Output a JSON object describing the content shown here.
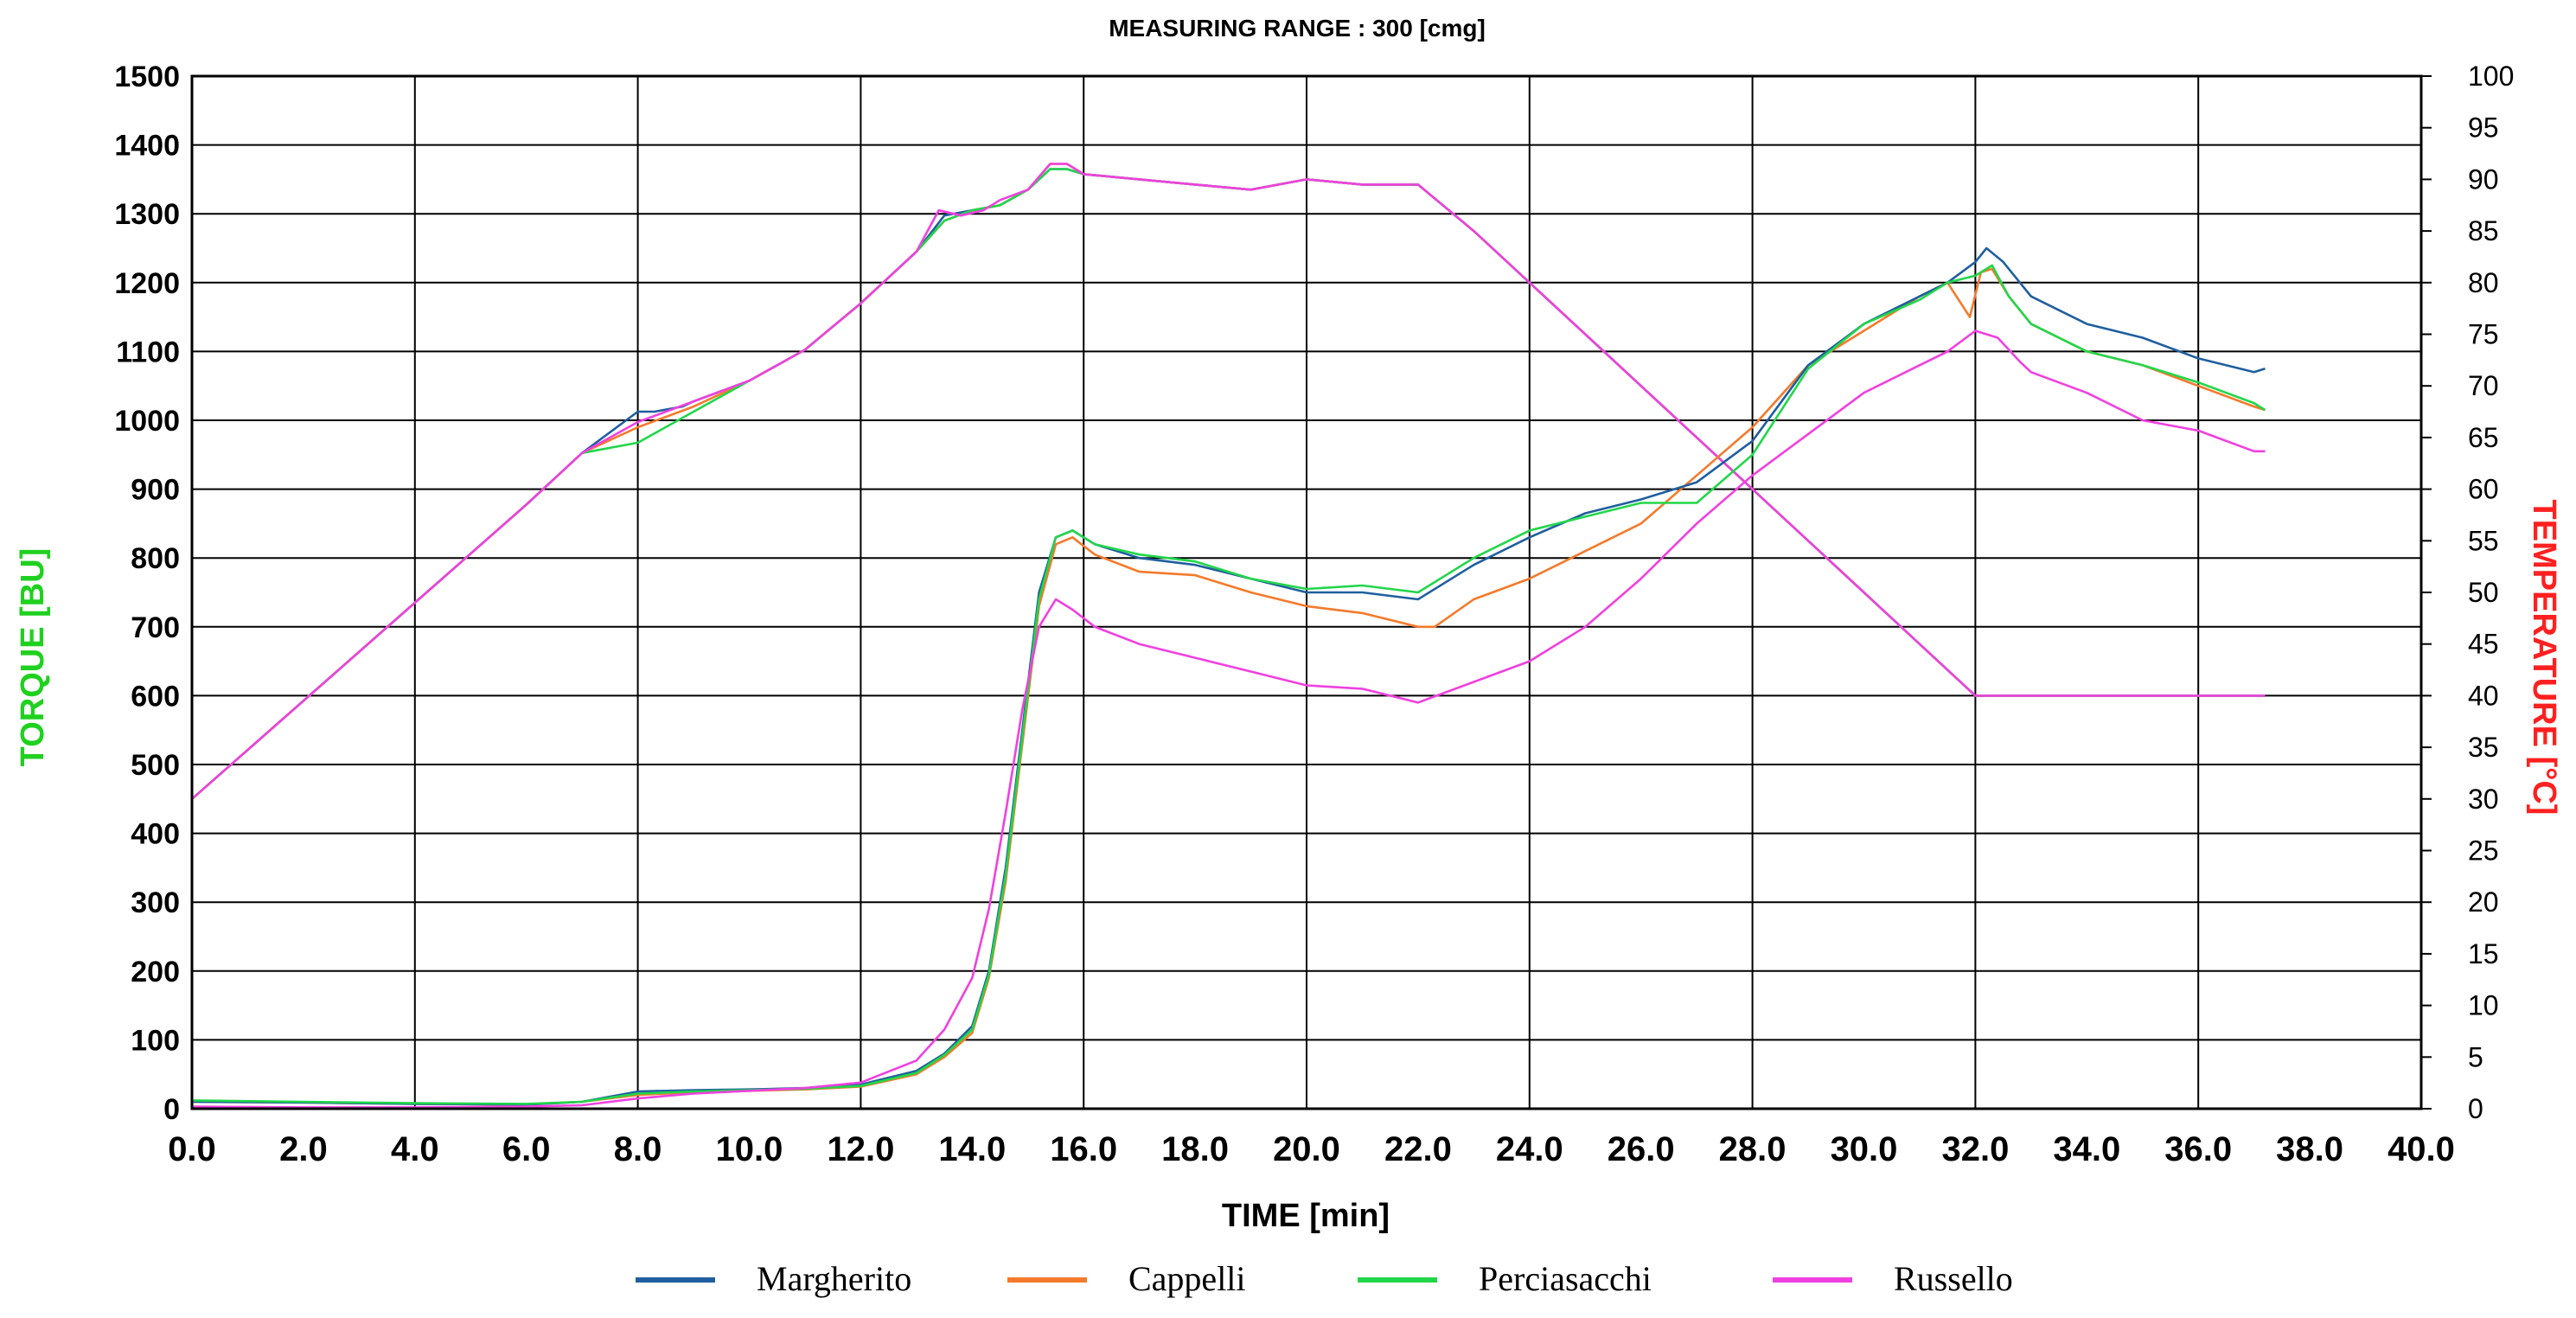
{
  "chart_data": {
    "type": "line",
    "title": "MEASURING RANGE : 300 [cmg]",
    "xlabel": "TIME  [min]",
    "ylabel": "TORQUE  [BU]",
    "y2label": "TEMPERATURE  [°C]",
    "xlim": [
      0,
      40
    ],
    "ylim": [
      0,
      1500
    ],
    "y2lim": [
      0,
      100
    ],
    "grid": true,
    "legend_position": "bottom",
    "colors": {
      "ylabel": "#1fd11f",
      "y2label": "#ff2020",
      "grid": "#000000"
    },
    "x_ticks": [
      "0.0",
      "2.0",
      "4.0",
      "6.0",
      "8.0",
      "10.0",
      "12.0",
      "14.0",
      "16.0",
      "18.0",
      "20.0",
      "22.0",
      "24.0",
      "26.0",
      "28.0",
      "30.0",
      "32.0",
      "34.0",
      "36.0",
      "38.0",
      "40.0"
    ],
    "y_ticks": [
      "0",
      "100",
      "200",
      "300",
      "400",
      "500",
      "600",
      "700",
      "800",
      "900",
      "1000",
      "1100",
      "1200",
      "1300",
      "1400",
      "1500"
    ],
    "y2_ticks": [
      "0",
      "5",
      "10",
      "15",
      "20",
      "25",
      "30",
      "35",
      "40",
      "45",
      "50",
      "55",
      "60",
      "65",
      "70",
      "75",
      "80",
      "85",
      "90",
      "95",
      "100"
    ],
    "series": [
      {
        "name": "Margherito",
        "color": "#1f5f9f",
        "axis": "y",
        "x": [
          0,
          2,
          4,
          6,
          7,
          8,
          9,
          10,
          11,
          12,
          13,
          13.5,
          14,
          14.3,
          14.6,
          14.9,
          15.2,
          15.5,
          15.8,
          16.2,
          17,
          18,
          19,
          20,
          21,
          22,
          23,
          24,
          25,
          26,
          27,
          28,
          29,
          30,
          31,
          31.5,
          32,
          32.2,
          32.5,
          33,
          34,
          35,
          36,
          37,
          37.2
        ],
        "y": [
          10,
          9,
          7,
          6,
          10,
          25,
          27,
          28,
          30,
          35,
          55,
          80,
          120,
          200,
          350,
          550,
          750,
          830,
          840,
          820,
          800,
          790,
          770,
          750,
          750,
          740,
          790,
          830,
          865,
          885,
          910,
          970,
          1080,
          1140,
          1180,
          1200,
          1230,
          1250,
          1230,
          1180,
          1140,
          1120,
          1090,
          1070,
          1075
        ]
      },
      {
        "name": "Cappelli",
        "color": "#f47a2b",
        "axis": "y",
        "x": [
          0,
          2,
          4,
          6,
          7,
          8,
          9,
          10,
          11,
          12,
          13,
          13.5,
          14,
          14.3,
          14.6,
          14.9,
          15.2,
          15.5,
          15.8,
          16.2,
          17,
          18,
          19,
          20,
          21,
          22,
          22.3,
          23,
          24,
          25,
          26,
          27,
          28,
          29,
          30,
          31,
          31.5,
          31.9,
          32.1,
          32.3,
          32.6,
          33,
          34,
          35,
          36,
          37,
          37.2
        ],
        "y": [
          10,
          9,
          7,
          6,
          10,
          20,
          24,
          26,
          28,
          32,
          50,
          75,
          110,
          190,
          330,
          530,
          730,
          820,
          830,
          805,
          780,
          775,
          750,
          730,
          720,
          700,
          700,
          740,
          770,
          810,
          850,
          920,
          990,
          1080,
          1130,
          1180,
          1200,
          1150,
          1215,
          1220,
          1180,
          1140,
          1100,
          1080,
          1050,
          1020,
          1015
        ]
      },
      {
        "name": "Perciasacchi",
        "color": "#22d64a",
        "axis": "y",
        "x": [
          0,
          2,
          4,
          6,
          7,
          8,
          9,
          10,
          11,
          12,
          13,
          13.5,
          14,
          14.3,
          14.6,
          14.9,
          15.2,
          15.5,
          15.8,
          16.2,
          17,
          18,
          19,
          20,
          21,
          22,
          23,
          24,
          25,
          26,
          27,
          28,
          29,
          30,
          31,
          31.5,
          32,
          32.3,
          32.6,
          33,
          34,
          35,
          36,
          37,
          37.2
        ],
        "y": [
          12,
          10,
          8,
          7,
          10,
          22,
          25,
          27,
          29,
          33,
          52,
          78,
          115,
          195,
          340,
          540,
          740,
          830,
          840,
          820,
          805,
          795,
          770,
          755,
          760,
          750,
          800,
          840,
          860,
          880,
          880,
          950,
          1075,
          1140,
          1175,
          1200,
          1210,
          1225,
          1180,
          1140,
          1100,
          1080,
          1055,
          1025,
          1015
        ]
      },
      {
        "name": "Russello",
        "color": "#f040e0",
        "axis": "y",
        "x": [
          0,
          2,
          4,
          6,
          7,
          8,
          9,
          10,
          11,
          12,
          13,
          13.5,
          14,
          14.3,
          14.6,
          14.9,
          15.2,
          15.5,
          15.8,
          16.2,
          17,
          18,
          19,
          20,
          21,
          22,
          23,
          24,
          25,
          26,
          27,
          28,
          29,
          30,
          31,
          31.5,
          32,
          32.4,
          32.8,
          33,
          34,
          35,
          36,
          37,
          37.2
        ],
        "y": [
          3,
          2,
          2,
          3,
          5,
          15,
          22,
          26,
          30,
          38,
          70,
          115,
          190,
          290,
          430,
          580,
          700,
          740,
          725,
          700,
          675,
          655,
          635,
          615,
          610,
          590,
          620,
          650,
          700,
          770,
          850,
          920,
          980,
          1040,
          1080,
          1100,
          1130,
          1120,
          1085,
          1070,
          1040,
          1000,
          985,
          955,
          955
        ]
      }
    ],
    "temperature_series": [
      {
        "name": "Margherito",
        "color": "#1f5f9f",
        "axis": "y2",
        "x": [
          0,
          2,
          4,
          6,
          7,
          8,
          8.3,
          8.8,
          9,
          10,
          11,
          12,
          13,
          13.5,
          14,
          14.5,
          15,
          15.4,
          15.7,
          16,
          17,
          18,
          19,
          20,
          21,
          22,
          23,
          24,
          25,
          26,
          27,
          28,
          29,
          30,
          31,
          32,
          32.3,
          33,
          34,
          35,
          36,
          37,
          37.2
        ],
        "y": [
          30,
          39.5,
          49,
          58.5,
          63.5,
          67.5,
          67.5,
          68,
          68.5,
          70.5,
          73.5,
          78,
          83,
          86.5,
          87,
          87.5,
          89,
          91,
          91,
          90.5,
          90,
          89.5,
          89,
          90,
          89.5,
          89.5,
          85,
          80,
          75,
          70,
          65,
          60,
          55,
          50,
          45,
          40,
          40,
          40,
          40,
          40,
          40,
          40,
          40
        ]
      },
      {
        "name": "Cappelli",
        "color": "#f47a2b",
        "axis": "y2",
        "x": [
          0,
          2,
          4,
          6,
          7,
          8,
          9,
          10,
          11,
          12,
          13,
          13.5,
          14,
          14.5,
          15,
          15.4,
          15.7,
          16,
          17,
          18,
          19,
          20,
          21,
          22,
          23,
          24,
          25,
          26,
          27,
          28,
          29,
          30,
          31,
          32,
          32.3,
          33,
          34,
          35,
          36,
          37,
          37.2
        ],
        "y": [
          30,
          39.5,
          49,
          58.5,
          63.5,
          66,
          68,
          70.5,
          73.5,
          78,
          83,
          86,
          87,
          87.5,
          89,
          91.5,
          91.5,
          90.5,
          90,
          89.5,
          89,
          90,
          89.5,
          89.5,
          85,
          80,
          75,
          70,
          65,
          60,
          55,
          50,
          45,
          40,
          40,
          40,
          40,
          40,
          40,
          40,
          40
        ]
      },
      {
        "name": "Perciasacchi",
        "color": "#22d64a",
        "axis": "y2",
        "x": [
          0,
          2,
          4,
          6,
          7,
          8,
          9,
          10,
          11,
          12,
          13,
          13.5,
          14,
          14.5,
          15,
          15.4,
          15.7,
          16,
          17,
          18,
          19,
          20,
          21,
          22,
          23,
          24,
          25,
          26,
          27,
          28,
          29,
          30,
          31,
          32,
          32.3,
          33,
          34,
          35,
          36,
          37,
          37.2
        ],
        "y": [
          30,
          39.5,
          49,
          58.5,
          63.5,
          64.5,
          67.5,
          70.5,
          73.5,
          78,
          83,
          86,
          87,
          87.5,
          89,
          91,
          91,
          90.5,
          90,
          89.5,
          89,
          90,
          89.5,
          89.5,
          85,
          80,
          75,
          70,
          65,
          60,
          55,
          50,
          45,
          40,
          40,
          40,
          40,
          40,
          40,
          40,
          40
        ]
      },
      {
        "name": "Russello",
        "color": "#f040e0",
        "axis": "y2",
        "x": [
          0,
          2,
          4,
          6,
          7,
          8,
          9,
          10,
          11,
          12,
          13,
          13.4,
          13.8,
          14.2,
          14.5,
          15,
          15.4,
          15.7,
          16,
          17,
          18,
          19,
          20,
          21,
          22,
          23,
          24,
          25,
          26,
          27,
          28,
          29,
          30,
          31,
          32,
          32.3,
          33,
          34,
          35,
          36,
          37,
          37.2
        ],
        "y": [
          30,
          39.5,
          49,
          58.5,
          63.5,
          66.5,
          68.5,
          70.5,
          73.5,
          78,
          83,
          87,
          86.5,
          87,
          88,
          89,
          91.5,
          91.5,
          90.5,
          90,
          89.5,
          89,
          90,
          89.5,
          89.5,
          85,
          80,
          75,
          70,
          65,
          60,
          55,
          50,
          45,
          40,
          40,
          40,
          40,
          40,
          40,
          40,
          40
        ]
      }
    ]
  }
}
